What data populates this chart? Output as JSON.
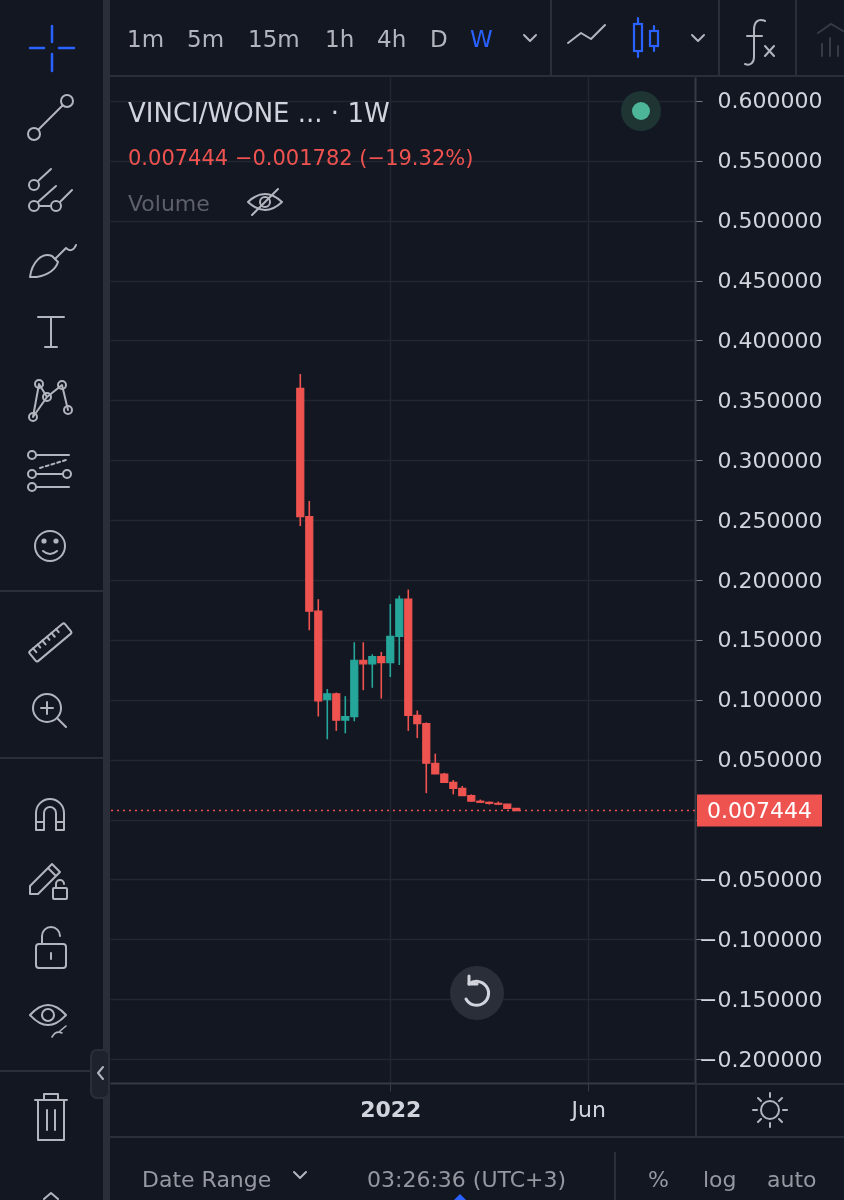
{
  "chart_data": {
    "type": "candlestick",
    "title": "VINCI/WONE ... · 1W",
    "x": [
      "2021-10-25",
      "2021-11-01",
      "2021-11-08",
      "2021-11-15",
      "2021-11-22",
      "2021-11-29",
      "2021-12-06",
      "2021-12-13",
      "2021-12-20",
      "2021-12-27",
      "2022-01-03",
      "2022-01-10",
      "2022-01-17",
      "2022-01-24",
      "2022-01-31",
      "2022-02-07",
      "2022-02-14",
      "2022-02-21",
      "2022-02-28",
      "2022-03-07",
      "2022-03-14",
      "2022-03-21",
      "2022-03-28",
      "2022-04-04",
      "2022-04-11"
    ],
    "ohlc": [
      [
        0.36,
        0.372,
        0.245,
        0.253
      ],
      [
        0.253,
        0.266,
        0.158,
        0.174
      ],
      [
        0.174,
        0.184,
        0.086,
        0.099
      ],
      [
        0.1,
        0.109,
        0.067,
        0.105
      ],
      [
        0.105,
        0.106,
        0.074,
        0.083
      ],
      [
        0.083,
        0.103,
        0.072,
        0.086
      ],
      [
        0.086,
        0.148,
        0.082,
        0.133
      ],
      [
        0.133,
        0.148,
        0.108,
        0.13
      ],
      [
        0.13,
        0.138,
        0.11,
        0.136
      ],
      [
        0.136,
        0.14,
        0.101,
        0.131
      ],
      [
        0.131,
        0.18,
        0.119,
        0.153
      ],
      [
        0.153,
        0.187,
        0.129,
        0.184
      ],
      [
        0.184,
        0.192,
        0.074,
        0.087
      ],
      [
        0.087,
        0.091,
        0.068,
        0.08
      ],
      [
        0.08,
        0.081,
        0.022,
        0.047
      ],
      [
        0.047,
        0.055,
        0.038,
        0.038
      ],
      [
        0.038,
        0.039,
        0.031,
        0.031
      ],
      [
        0.031,
        0.033,
        0.021,
        0.026
      ],
      [
        0.026,
        0.028,
        0.02,
        0.02
      ],
      [
        0.02,
        0.021,
        0.015,
        0.0153
      ],
      [
        0.0153,
        0.0167,
        0.0139,
        0.0144
      ],
      [
        0.0144,
        0.015,
        0.0125,
        0.0135
      ],
      [
        0.0135,
        0.015,
        0.0122,
        0.0128
      ],
      [
        0.0128,
        0.013,
        0.009,
        0.009226
      ],
      [
        0.009226,
        0.0095,
        0.0074,
        0.007444
      ]
    ],
    "colors": [
      "#ef5350",
      "#ef5350",
      "#ef5350",
      "#26a69a",
      "#ef5350",
      "#26a69a",
      "#26a69a",
      "#ef5350",
      "#26a69a",
      "#ef5350",
      "#26a69a",
      "#26a69a",
      "#ef5350",
      "#ef5350",
      "#ef5350",
      "#ef5350",
      "#ef5350",
      "#ef5350",
      "#ef5350",
      "#ef5350",
      "#ef5350",
      "#ef5350",
      "#ef5350",
      "#ef5350",
      "#ef5350"
    ],
    "xlim": [
      "2021-05-30",
      "2022-08-28"
    ],
    "xticks": [
      {
        "value": "2022-01-03",
        "label": "2022"
      },
      {
        "value": "2022-06-06",
        "label": "Jun"
      }
    ],
    "ylim": [
      -0.22,
      0.62
    ],
    "yticks": [
      {
        "value": -0.2,
        "label": "−0.200000"
      },
      {
        "value": -0.15,
        "label": "−0.150000"
      },
      {
        "value": -0.1,
        "label": "−0.100000"
      },
      {
        "value": -0.05,
        "label": "−0.050000"
      },
      {
        "value": 0,
        "label": null
      },
      {
        "value": 0.05,
        "label": "0.050000"
      },
      {
        "value": 0.1,
        "label": "0.100000"
      },
      {
        "value": 0.15,
        "label": "0.150000"
      },
      {
        "value": 0.2,
        "label": "0.200000"
      },
      {
        "value": 0.25,
        "label": "0.250000"
      },
      {
        "value": 0.3,
        "label": "0.300000"
      },
      {
        "value": 0.35,
        "label": "0.350000"
      },
      {
        "value": 0.4,
        "label": "0.400000"
      },
      {
        "value": 0.45,
        "label": "0.450000"
      },
      {
        "value": 0.5,
        "label": "0.500000"
      },
      {
        "value": 0.55,
        "label": "0.550000"
      },
      {
        "value": 0.6,
        "label": "0.600000"
      }
    ],
    "grid": true,
    "ref_lines": [
      {
        "axis": "y",
        "value": 0.007444,
        "label": "0.007444",
        "color": "#ef5350",
        "line_style": "dotted"
      }
    ],
    "annotations": [
      "1m",
      "5m",
      "15m",
      "1h",
      "4h",
      "D",
      "W",
      "0.007444 −0.001782 (−19.32%)",
      "Volume",
      "Date Range",
      "03:26:36 (UTC+3)",
      "%",
      "log",
      "auto"
    ]
  }
}
